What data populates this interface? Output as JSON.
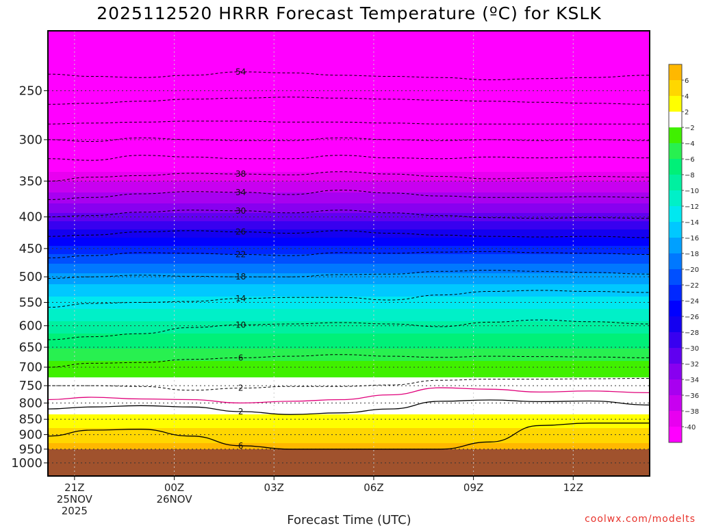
{
  "chart_data": {
    "type": "heatmap",
    "title": "2025112520 HRRR Forecast Temperature (ºC) for KSLK",
    "xlabel": "Forecast Time (UTC)",
    "ylabel": "",
    "y_scale": "log",
    "y_reversed": true,
    "y_unit": "hPa",
    "ylim": [
      1050,
      200
    ],
    "y_ticks": [
      250,
      300,
      350,
      400,
      450,
      500,
      550,
      600,
      650,
      700,
      750,
      800,
      850,
      900,
      950,
      1000
    ],
    "y_tick_labels": [
      "250",
      "300",
      "350",
      "400",
      "450",
      "500",
      "550",
      "600",
      "650",
      "700",
      "750",
      "800",
      "850",
      "900",
      "950",
      "1000"
    ],
    "x_unit": "hours since 2025-11-25 20Z",
    "xlim": [
      20.2,
      38.3
    ],
    "x_ticks": [
      {
        "x": 21,
        "lines": [
          "21Z",
          "25NOV",
          "2025"
        ]
      },
      {
        "x": 24,
        "lines": [
          "00Z",
          "26NOV"
        ]
      },
      {
        "x": 27,
        "lines": [
          "03Z"
        ]
      },
      {
        "x": 30,
        "lines": [
          "06Z"
        ]
      },
      {
        "x": 33,
        "lines": [
          "09Z"
        ]
      },
      {
        "x": 36,
        "lines": [
          "12Z"
        ]
      }
    ],
    "grid": true,
    "underground_below_hpa": 950,
    "underground_color": "#a0522d",
    "colorbar": {
      "placement": "right",
      "levels": [
        -40,
        -38,
        -36,
        -34,
        -32,
        -30,
        -28,
        -26,
        -24,
        -22,
        -20,
        -18,
        -16,
        -14,
        -12,
        -10,
        -8,
        -6,
        -4,
        -2,
        2,
        4,
        6
      ],
      "labels": [
        "-40",
        "−38",
        "−36",
        "−34",
        "−32",
        "−30",
        "−28",
        "−26",
        "−24",
        "−22",
        "−20",
        "−18",
        "−16",
        "−14",
        "−12",
        "−10",
        "−8",
        "−6",
        "−4",
        "−2",
        "2",
        "4",
        "6"
      ],
      "colors": [
        "#ff00ff",
        "#e800f0",
        "#c800f0",
        "#a800f0",
        "#8800f0",
        "#6000f0",
        "#3800f0",
        "#1400f0",
        "#0000ff",
        "#0028ff",
        "#0050ff",
        "#0078ff",
        "#00a0ff",
        "#00c8ff",
        "#00e8f0",
        "#00f0c8",
        "#00f0a0",
        "#00f078",
        "#28f050",
        "#40f000",
        "#ffffff",
        "#ffff00",
        "#ffd700",
        "#ffb800"
      ]
    },
    "temperature_profile": {
      "pressure": [
        200,
        250,
        300,
        350,
        400,
        450,
        500,
        550,
        600,
        650,
        700,
        750,
        800,
        850,
        900,
        950
      ],
      "temperature": [
        -58,
        -54,
        -46,
        -38,
        -31,
        -23,
        -17,
        -13,
        -9,
        -6,
        -3,
        -1,
        0,
        3,
        5,
        7
      ],
      "note": ""
    },
    "contours": [
      {
        "level": -54,
        "label": "54",
        "pressure": [
          235,
          237,
          238,
          236,
          233,
          234,
          236,
          237,
          238,
          240,
          239,
          238,
          236
        ],
        "times": [
          20.2,
          21.5,
          23,
          24.5,
          26,
          27.5,
          29,
          30.5,
          32,
          33.5,
          35,
          36.5,
          38.3
        ]
      },
      {
        "level": -50,
        "label": "",
        "pressure": [
          263,
          262,
          260,
          258,
          257,
          256,
          257,
          258,
          259,
          260,
          261,
          262,
          263
        ],
        "times": [
          20.2,
          21.5,
          23,
          24.5,
          26,
          27.5,
          29,
          30.5,
          32,
          33.5,
          35,
          36.5,
          38.3
        ]
      },
      {
        "level": -46,
        "label": "",
        "pressure": [
          283,
          282,
          281,
          280,
          280,
          281,
          281,
          282,
          283,
          283,
          283,
          283,
          283
        ],
        "times": [
          20.2,
          21.5,
          23,
          24.5,
          26,
          27.5,
          29,
          30.5,
          32,
          33.5,
          35,
          36.5,
          38.3
        ]
      },
      {
        "level": -42,
        "label": "",
        "pressure": [
          300,
          302,
          298,
          300,
          301,
          301,
          298,
          300,
          301,
          300,
          301,
          300,
          301
        ],
        "times": [
          20.2,
          21.5,
          23,
          24.5,
          26,
          27.5,
          29,
          30.5,
          32,
          33.5,
          35,
          36.5,
          38.3
        ]
      },
      {
        "level": -40,
        "label": "",
        "pressure": [
          322,
          324,
          318,
          320,
          322,
          322,
          318,
          321,
          322,
          320,
          321,
          320,
          321
        ],
        "times": [
          20.2,
          21.5,
          23,
          24.5,
          26,
          27.5,
          29,
          30.5,
          32,
          33.5,
          35,
          36.5,
          38.3
        ]
      },
      {
        "level": -38,
        "label": "38",
        "pressure": [
          350,
          345,
          343,
          340,
          341,
          342,
          338,
          341,
          344,
          347,
          346,
          344,
          345
        ],
        "times": [
          20.2,
          21.5,
          23,
          24.5,
          26,
          27.5,
          29,
          30.5,
          32,
          33.5,
          35,
          36.5,
          38.3
        ]
      },
      {
        "level": -34,
        "label": "34",
        "pressure": [
          375,
          372,
          367,
          364,
          365,
          368,
          362,
          366,
          370,
          372,
          372,
          371,
          372
        ],
        "times": [
          20.2,
          21.5,
          23,
          24.5,
          26,
          27.5,
          29,
          30.5,
          32,
          33.5,
          35,
          36.5,
          38.3
        ]
      },
      {
        "level": -30,
        "label": "30",
        "pressure": [
          400,
          398,
          393,
          390,
          391,
          394,
          390,
          394,
          398,
          401,
          402,
          401,
          402
        ],
        "times": [
          20.2,
          21.5,
          23,
          24.5,
          26,
          27.5,
          29,
          30.5,
          32,
          33.5,
          35,
          36.5,
          38.3
        ]
      },
      {
        "level": -26,
        "label": "26",
        "pressure": [
          430,
          428,
          423,
          421,
          423,
          425,
          421,
          425,
          428,
          430,
          431,
          430,
          432
        ],
        "times": [
          20.2,
          21.5,
          23,
          24.5,
          26,
          27.5,
          29,
          30.5,
          32,
          33.5,
          35,
          36.5,
          38.3
        ]
      },
      {
        "level": -22,
        "label": "22",
        "pressure": [
          466,
          462,
          457,
          458,
          460,
          462,
          457,
          458,
          456,
          455,
          457,
          458,
          460
        ],
        "times": [
          20.2,
          21.5,
          23,
          24.5,
          26,
          27.5,
          29,
          30.5,
          32,
          33.5,
          35,
          36.5,
          38.3
        ]
      },
      {
        "level": -18,
        "label": "18",
        "pressure": [
          503,
          500,
          497,
          499,
          500,
          500,
          496,
          495,
          490,
          488,
          490,
          492,
          495
        ],
        "times": [
          20.2,
          21.5,
          23,
          24.5,
          26,
          27.5,
          29,
          30.5,
          32,
          33.5,
          35,
          36.5,
          38.3
        ]
      },
      {
        "level": -14,
        "label": "14",
        "pressure": [
          560,
          552,
          550,
          548,
          542,
          540,
          540,
          545,
          535,
          528,
          526,
          528,
          530
        ],
        "times": [
          20.2,
          21.5,
          23,
          24.5,
          26,
          27.5,
          29,
          30.5,
          32,
          33.5,
          35,
          36.5,
          38.3
        ]
      },
      {
        "level": -10,
        "label": "10",
        "pressure": [
          632,
          625,
          618,
          604,
          598,
          596,
          593,
          596,
          602,
          592,
          587,
          591,
          596
        ],
        "times": [
          20.2,
          21.5,
          23,
          24.5,
          26,
          27.5,
          29,
          30.5,
          32,
          33.5,
          35,
          36.5,
          38.3
        ]
      },
      {
        "level": -6,
        "label": "6",
        "pressure": [
          700,
          690,
          688,
          680,
          676,
          672,
          668,
          672,
          675,
          672,
          673,
          674,
          676
        ],
        "times": [
          20.2,
          21.5,
          23,
          24.5,
          26,
          27.5,
          29,
          30.5,
          32,
          33.5,
          35,
          36.5,
          38.3
        ]
      },
      {
        "level": -2,
        "label": "2",
        "pressure": [
          750,
          750,
          752,
          763,
          757,
          752,
          752,
          748,
          735,
          732,
          732,
          731,
          730
        ],
        "times": [
          20.2,
          21.5,
          23,
          24.5,
          26,
          27.5,
          29,
          30.5,
          32,
          33.5,
          35,
          36.5,
          38.3
        ]
      },
      {
        "level": 0,
        "label": "",
        "pressure": [
          790,
          783,
          788,
          790,
          800,
          795,
          790,
          776,
          756,
          760,
          768,
          765,
          770
        ],
        "times": [
          20.2,
          21.5,
          23,
          24.5,
          26,
          27.5,
          29,
          30.5,
          32,
          33.5,
          35,
          36.5,
          38.3
        ]
      },
      {
        "level": 2,
        "label": "2",
        "pressure": [
          818,
          812,
          808,
          812,
          826,
          835,
          830,
          818,
          795,
          791,
          796,
          794,
          806
        ],
        "times": [
          20.2,
          21.5,
          23,
          24.5,
          26,
          27.5,
          29,
          30.5,
          32,
          33.5,
          35,
          36.5,
          38.3
        ]
      },
      {
        "level": 6,
        "label": "6",
        "pressure": [
          905,
          885,
          882,
          905,
          938,
          950,
          950,
          950,
          950,
          925,
          870,
          862,
          862
        ],
        "times": [
          20.2,
          21.5,
          23,
          24.5,
          26,
          27.5,
          29,
          30.5,
          32,
          33.5,
          35,
          36.5,
          38.3
        ]
      }
    ]
  },
  "credit": "coolwx.com/modelts"
}
